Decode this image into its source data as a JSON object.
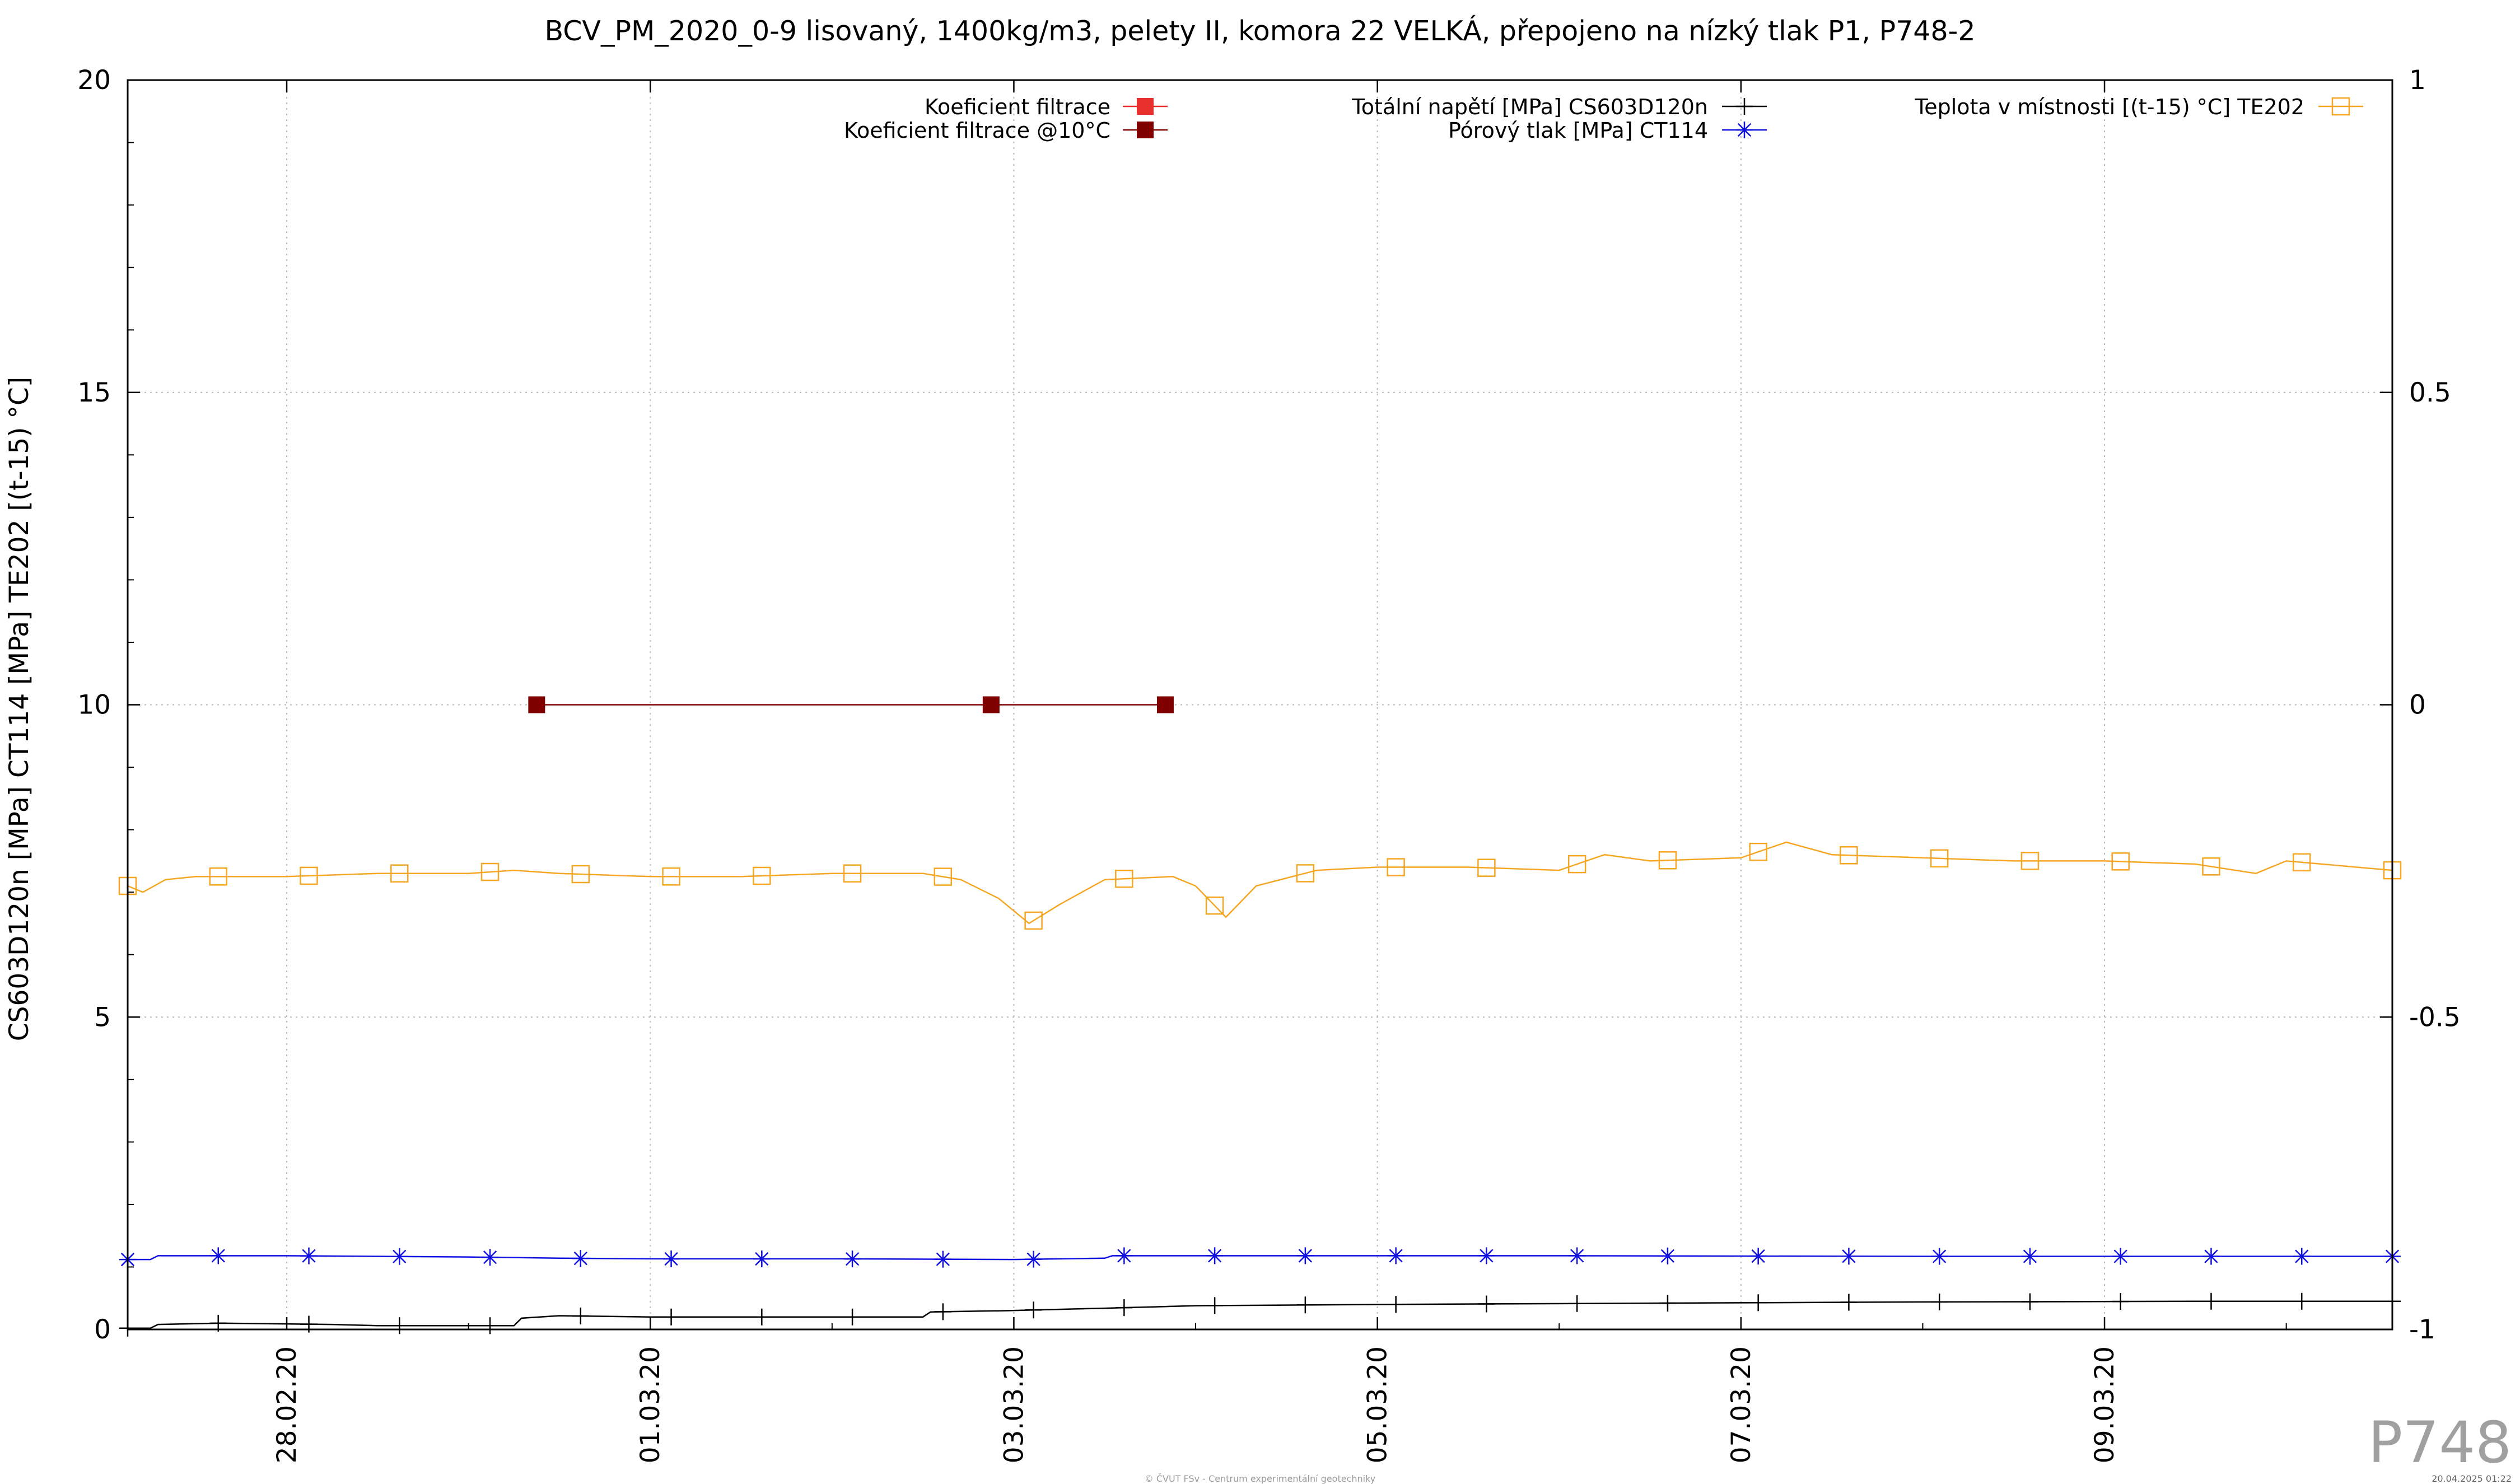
{
  "chart_data": {
    "type": "line",
    "title": "BCV_PM_2020_0-9 lisovaný, 1400kg/m3, pelety II, komora 22 VELKÁ, přepojeno na nízký tlak P1, P748-2",
    "ylabel": "CS603D120n [MPa] CT114 [MPa] TE202 [(t-15) °C]",
    "y2label": "",
    "xlabel": "",
    "ylim": [
      0,
      20
    ],
    "y2lim": [
      -1,
      1
    ],
    "xlim": [
      "2020-02-27 03:00",
      "2020-03-10 14:00"
    ],
    "grid": true,
    "y_ticks": [
      "0",
      "5",
      "10",
      "15",
      "20"
    ],
    "y2_ticks": [
      "-1",
      "-0.5",
      "0",
      "0.5",
      "1"
    ],
    "x_ticks": [
      "28.02.20",
      "01.03.20",
      "03.03.20",
      "05.03.20",
      "07.03.20",
      "09.03.20"
    ],
    "legend_position": "top",
    "series": [
      {
        "name": "Koeficient filtrace",
        "axis": "y2",
        "color": "#e8302c",
        "marker": "filled-square",
        "points": []
      },
      {
        "name": "Koeficient filtrace @10°C",
        "axis": "y2",
        "color": "#800000",
        "marker": "filled-square",
        "points": [
          [
            "2020-02-29 09:00",
            0.0
          ],
          [
            "2020-03-02 21:00",
            0.0
          ],
          [
            "2020-03-03 20:00",
            0.0
          ]
        ]
      },
      {
        "name": "Totální napětí [MPa] CS603D120n",
        "axis": "y",
        "color": "#000000",
        "marker": "plus",
        "points": [
          [
            "2020-02-27 03:00",
            0.02
          ],
          [
            "2020-02-27 06:00",
            0.02
          ],
          [
            "2020-02-27 07:00",
            0.08
          ],
          [
            "2020-02-27 15:00",
            0.1
          ],
          [
            "2020-02-28 06:00",
            0.08
          ],
          [
            "2020-02-28 12:00",
            0.06
          ],
          [
            "2020-02-29 06:00",
            0.06
          ],
          [
            "2020-02-29 07:00",
            0.18
          ],
          [
            "2020-02-29 12:00",
            0.22
          ],
          [
            "2020-03-01 00:00",
            0.2
          ],
          [
            "2020-03-02 00:00",
            0.2
          ],
          [
            "2020-03-02 12:00",
            0.2
          ],
          [
            "2020-03-02 13:00",
            0.28
          ],
          [
            "2020-03-02 23:00",
            0.3
          ],
          [
            "2020-03-03 12:00",
            0.34
          ],
          [
            "2020-03-04 00:00",
            0.38
          ],
          [
            "2020-03-05 00:00",
            0.4
          ],
          [
            "2020-03-06 12:00",
            0.42
          ],
          [
            "2020-03-08 00:00",
            0.44
          ],
          [
            "2020-03-09 12:00",
            0.45
          ],
          [
            "2020-03-10 14:00",
            0.45
          ]
        ]
      },
      {
        "name": "Pórový tlak [MPa] CT114",
        "axis": "y",
        "color": "#1010e0",
        "marker": "star",
        "points": [
          [
            "2020-02-27 03:00",
            1.12
          ],
          [
            "2020-02-27 06:00",
            1.12
          ],
          [
            "2020-02-27 07:00",
            1.18
          ],
          [
            "2020-02-28 00:00",
            1.18
          ],
          [
            "2020-02-29 00:00",
            1.16
          ],
          [
            "2020-02-29 12:00",
            1.14
          ],
          [
            "2020-03-01 00:00",
            1.13
          ],
          [
            "2020-03-02 00:00",
            1.13
          ],
          [
            "2020-03-03 00:00",
            1.12
          ],
          [
            "2020-03-03 12:00",
            1.14
          ],
          [
            "2020-03-03 13:00",
            1.18
          ],
          [
            "2020-03-04 12:00",
            1.18
          ],
          [
            "2020-03-06 00:00",
            1.18
          ],
          [
            "2020-03-08 00:00",
            1.17
          ],
          [
            "2020-03-10 14:00",
            1.17
          ]
        ]
      },
      {
        "name": "Teplota v místnosti [(t-15) °C] TE202",
        "axis": "y",
        "color": "#f5a623",
        "marker": "open-square",
        "points": [
          [
            "2020-02-27 03:00",
            7.1
          ],
          [
            "2020-02-27 05:00",
            7.0
          ],
          [
            "2020-02-27 08:00",
            7.2
          ],
          [
            "2020-02-27 12:00",
            7.25
          ],
          [
            "2020-02-28 00:00",
            7.25
          ],
          [
            "2020-02-28 12:00",
            7.3
          ],
          [
            "2020-02-29 00:00",
            7.3
          ],
          [
            "2020-02-29 06:00",
            7.35
          ],
          [
            "2020-02-29 12:00",
            7.3
          ],
          [
            "2020-03-01 00:00",
            7.25
          ],
          [
            "2020-03-01 12:00",
            7.25
          ],
          [
            "2020-03-02 00:00",
            7.3
          ],
          [
            "2020-03-02 12:00",
            7.3
          ],
          [
            "2020-03-02 17:00",
            7.2
          ],
          [
            "2020-03-02 22:00",
            6.9
          ],
          [
            "2020-03-03 02:00",
            6.5
          ],
          [
            "2020-03-03 06:00",
            6.8
          ],
          [
            "2020-03-03 12:00",
            7.2
          ],
          [
            "2020-03-03 21:00",
            7.25
          ],
          [
            "2020-03-04 00:00",
            7.1
          ],
          [
            "2020-03-04 04:00",
            6.6
          ],
          [
            "2020-03-04 08:00",
            7.1
          ],
          [
            "2020-03-04 16:00",
            7.35
          ],
          [
            "2020-03-05 00:00",
            7.4
          ],
          [
            "2020-03-05 12:00",
            7.4
          ],
          [
            "2020-03-06 00:00",
            7.35
          ],
          [
            "2020-03-06 06:00",
            7.6
          ],
          [
            "2020-03-06 12:00",
            7.5
          ],
          [
            "2020-03-07 00:00",
            7.55
          ],
          [
            "2020-03-07 06:00",
            7.8
          ],
          [
            "2020-03-07 12:00",
            7.6
          ],
          [
            "2020-03-08 00:00",
            7.55
          ],
          [
            "2020-03-08 12:00",
            7.5
          ],
          [
            "2020-03-09 00:00",
            7.5
          ],
          [
            "2020-03-09 12:00",
            7.45
          ],
          [
            "2020-03-09 20:00",
            7.3
          ],
          [
            "2020-03-10 00:00",
            7.5
          ],
          [
            "2020-03-10 14:00",
            7.35
          ]
        ]
      }
    ],
    "annotations": {
      "watermark": "P748",
      "credit": "© ČVUT FSv - Centrum experimentální geotechniky",
      "timestamp": "20.04.2025 01:22"
    }
  }
}
